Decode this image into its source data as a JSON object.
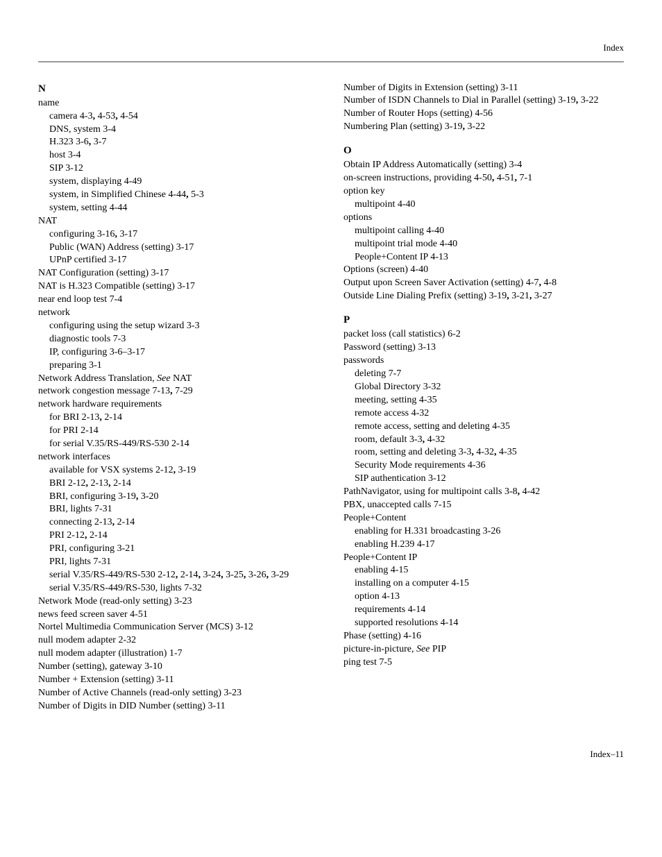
{
  "header": {
    "label": "Index"
  },
  "footer": {
    "label": "Index–11"
  },
  "left": {
    "letter": "N",
    "entries": [
      {
        "lvl": 0,
        "runs": [
          [
            "",
            "name"
          ]
        ]
      },
      {
        "lvl": 1,
        "runs": [
          [
            "",
            "camera 4-3"
          ],
          [
            "b",
            ","
          ],
          [
            "",
            " 4-53"
          ],
          [
            "b",
            ","
          ],
          [
            "",
            " 4-54"
          ]
        ]
      },
      {
        "lvl": 1,
        "runs": [
          [
            "",
            "DNS, system 3-4"
          ]
        ]
      },
      {
        "lvl": 1,
        "runs": [
          [
            "",
            "H.323 3-6"
          ],
          [
            "b",
            ","
          ],
          [
            "",
            " 3-7"
          ]
        ]
      },
      {
        "lvl": 1,
        "runs": [
          [
            "",
            "host 3-4"
          ]
        ]
      },
      {
        "lvl": 1,
        "runs": [
          [
            "",
            "SIP 3-12"
          ]
        ]
      },
      {
        "lvl": 1,
        "runs": [
          [
            "",
            "system, displaying 4-49"
          ]
        ]
      },
      {
        "lvl": 1,
        "runs": [
          [
            "",
            "system, in Simplified Chinese 4-44"
          ],
          [
            "b",
            ","
          ],
          [
            "",
            " 5-3"
          ]
        ]
      },
      {
        "lvl": 1,
        "runs": [
          [
            "",
            "system, setting 4-44"
          ]
        ]
      },
      {
        "lvl": 0,
        "runs": [
          [
            "",
            "NAT"
          ]
        ]
      },
      {
        "lvl": 1,
        "runs": [
          [
            "",
            "configuring 3-16"
          ],
          [
            "b",
            ","
          ],
          [
            "",
            " 3-17"
          ]
        ]
      },
      {
        "lvl": 1,
        "runs": [
          [
            "",
            "Public (WAN) Address (setting) 3-17"
          ]
        ]
      },
      {
        "lvl": 1,
        "runs": [
          [
            "",
            "UPnP certified 3-17"
          ]
        ]
      },
      {
        "lvl": 0,
        "runs": [
          [
            "",
            "NAT Configuration (setting) 3-17"
          ]
        ]
      },
      {
        "lvl": 0,
        "runs": [
          [
            "",
            "NAT is H.323 Compatible (setting) 3-17"
          ]
        ]
      },
      {
        "lvl": 0,
        "runs": [
          [
            "",
            "near end loop test 7-4"
          ]
        ]
      },
      {
        "lvl": 0,
        "runs": [
          [
            "",
            "network"
          ]
        ]
      },
      {
        "lvl": 1,
        "runs": [
          [
            "",
            "configuring using the setup wizard 3-3"
          ]
        ]
      },
      {
        "lvl": 1,
        "runs": [
          [
            "",
            "diagnostic tools 7-3"
          ]
        ]
      },
      {
        "lvl": 1,
        "runs": [
          [
            "",
            "IP, configuring 3-6–3-17"
          ]
        ]
      },
      {
        "lvl": 1,
        "runs": [
          [
            "",
            "preparing 3-1"
          ]
        ]
      },
      {
        "lvl": 0,
        "runs": [
          [
            "",
            "Network Address Translation, "
          ],
          [
            "i",
            "See"
          ],
          [
            "",
            " NAT"
          ]
        ]
      },
      {
        "lvl": 0,
        "runs": [
          [
            "",
            "network congestion message 7-13"
          ],
          [
            "b",
            ","
          ],
          [
            "",
            " 7-29"
          ]
        ]
      },
      {
        "lvl": 0,
        "runs": [
          [
            "",
            "network hardware requirements"
          ]
        ]
      },
      {
        "lvl": 1,
        "runs": [
          [
            "",
            "for BRI 2-13"
          ],
          [
            "b",
            ","
          ],
          [
            "",
            " 2-14"
          ]
        ]
      },
      {
        "lvl": 1,
        "runs": [
          [
            "",
            "for PRI 2-14"
          ]
        ]
      },
      {
        "lvl": 1,
        "runs": [
          [
            "",
            "for serial V.35/RS-449/RS-530 2-14"
          ]
        ]
      },
      {
        "lvl": 0,
        "runs": [
          [
            "",
            "network interfaces"
          ]
        ]
      },
      {
        "lvl": 1,
        "runs": [
          [
            "",
            "available for VSX systems 2-12"
          ],
          [
            "b",
            ","
          ],
          [
            "",
            " 3-19"
          ]
        ]
      },
      {
        "lvl": 1,
        "runs": [
          [
            "",
            "BRI 2-12"
          ],
          [
            "b",
            ","
          ],
          [
            "",
            " 2-13"
          ],
          [
            "b",
            ","
          ],
          [
            "",
            " 2-14"
          ]
        ]
      },
      {
        "lvl": 1,
        "runs": [
          [
            "",
            "BRI, configuring 3-19"
          ],
          [
            "b",
            ","
          ],
          [
            "",
            " 3-20"
          ]
        ]
      },
      {
        "lvl": 1,
        "runs": [
          [
            "",
            "BRI, lights 7-31"
          ]
        ]
      },
      {
        "lvl": 1,
        "runs": [
          [
            "",
            "connecting 2-13"
          ],
          [
            "b",
            ","
          ],
          [
            "",
            " 2-14"
          ]
        ]
      },
      {
        "lvl": 1,
        "runs": [
          [
            "",
            "PRI 2-12"
          ],
          [
            "b",
            ","
          ],
          [
            "",
            " 2-14"
          ]
        ]
      },
      {
        "lvl": 1,
        "runs": [
          [
            "",
            "PRI, configuring 3-21"
          ]
        ]
      },
      {
        "lvl": 1,
        "runs": [
          [
            "",
            "PRI, lights 7-31"
          ]
        ]
      },
      {
        "lvl": 1,
        "runs": [
          [
            "",
            "serial V.35/RS-449/RS-530 2-12"
          ],
          [
            "b",
            ","
          ],
          [
            "",
            " 2-14"
          ],
          [
            "b",
            ","
          ],
          [
            "",
            " 3-24"
          ],
          [
            "b",
            ","
          ],
          [
            "",
            " 3-25"
          ],
          [
            "b",
            ","
          ],
          [
            "",
            " 3-26"
          ],
          [
            "b",
            ","
          ],
          [
            "",
            " 3-29"
          ]
        ]
      },
      {
        "lvl": 1,
        "runs": [
          [
            "",
            "serial V.35/RS-449/RS-530, lights 7-32"
          ]
        ]
      },
      {
        "lvl": 0,
        "runs": [
          [
            "",
            "Network Mode (read-only setting) 3-23"
          ]
        ]
      },
      {
        "lvl": 0,
        "runs": [
          [
            "",
            "news feed screen saver 4-51"
          ]
        ]
      },
      {
        "lvl": 0,
        "runs": [
          [
            "",
            "Nortel Multimedia Communication Server (MCS) 3-12"
          ]
        ]
      },
      {
        "lvl": 0,
        "runs": [
          [
            "",
            "null modem adapter 2-32"
          ]
        ]
      },
      {
        "lvl": 0,
        "runs": [
          [
            "",
            "null modem adapter (illustration) 1-7"
          ]
        ]
      },
      {
        "lvl": 0,
        "runs": [
          [
            "",
            "Number (setting), gateway 3-10"
          ]
        ]
      },
      {
        "lvl": 0,
        "runs": [
          [
            "",
            "Number + Extension (setting) 3-11"
          ]
        ]
      },
      {
        "lvl": 0,
        "runs": [
          [
            "",
            "Number of Active Channels (read-only setting) 3-23"
          ]
        ]
      },
      {
        "lvl": 0,
        "runs": [
          [
            "",
            "Number of Digits in DID Number (setting) 3-11"
          ]
        ]
      }
    ]
  },
  "right": {
    "blocks": [
      {
        "letter": null,
        "entries": [
          {
            "lvl": 0,
            "runs": [
              [
                "",
                "Number of Digits in Extension (setting) 3-11"
              ]
            ]
          },
          {
            "lvl": 0,
            "runs": [
              [
                "",
                "Number of ISDN Channels to Dial in Parallel (setting) 3-19"
              ],
              [
                "b",
                ","
              ],
              [
                "",
                " 3-22"
              ]
            ]
          },
          {
            "lvl": 0,
            "runs": [
              [
                "",
                "Number of Router Hops (setting) 4-56"
              ]
            ]
          },
          {
            "lvl": 0,
            "runs": [
              [
                "",
                "Numbering Plan (setting) 3-19"
              ],
              [
                "b",
                ","
              ],
              [
                "",
                " 3-22"
              ]
            ]
          }
        ]
      },
      {
        "letter": "O",
        "entries": [
          {
            "lvl": 0,
            "runs": [
              [
                "",
                "Obtain IP Address Automatically (setting) 3-4"
              ]
            ]
          },
          {
            "lvl": 0,
            "runs": [
              [
                "",
                "on-screen instructions, providing 4-50"
              ],
              [
                "b",
                ","
              ],
              [
                "",
                " 4-51"
              ],
              [
                "b",
                ","
              ],
              [
                "",
                " 7-1"
              ]
            ]
          },
          {
            "lvl": 0,
            "runs": [
              [
                "",
                "option key"
              ]
            ]
          },
          {
            "lvl": 1,
            "runs": [
              [
                "",
                "multipoint 4-40"
              ]
            ]
          },
          {
            "lvl": 0,
            "runs": [
              [
                "",
                "options"
              ]
            ]
          },
          {
            "lvl": 1,
            "runs": [
              [
                "",
                "multipoint calling 4-40"
              ]
            ]
          },
          {
            "lvl": 1,
            "runs": [
              [
                "",
                "multipoint trial mode 4-40"
              ]
            ]
          },
          {
            "lvl": 1,
            "runs": [
              [
                "",
                "People+Content IP 4-13"
              ]
            ]
          },
          {
            "lvl": 0,
            "runs": [
              [
                "",
                "Options (screen) 4-40"
              ]
            ]
          },
          {
            "lvl": 0,
            "runs": [
              [
                "",
                "Output upon Screen Saver Activation (setting) 4-7"
              ],
              [
                "b",
                ","
              ],
              [
                "",
                " 4-8"
              ]
            ]
          },
          {
            "lvl": 0,
            "runs": [
              [
                "",
                "Outside Line Dialing Prefix (setting) 3-19"
              ],
              [
                "b",
                ","
              ],
              [
                "",
                " 3-21"
              ],
              [
                "b",
                ","
              ],
              [
                "",
                " 3-27"
              ]
            ]
          }
        ]
      },
      {
        "letter": "P",
        "entries": [
          {
            "lvl": 0,
            "runs": [
              [
                "",
                "packet loss (call statistics) 6-2"
              ]
            ]
          },
          {
            "lvl": 0,
            "runs": [
              [
                "",
                "Password (setting) 3-13"
              ]
            ]
          },
          {
            "lvl": 0,
            "runs": [
              [
                "",
                "passwords"
              ]
            ]
          },
          {
            "lvl": 1,
            "runs": [
              [
                "",
                "deleting 7-7"
              ]
            ]
          },
          {
            "lvl": 1,
            "runs": [
              [
                "",
                "Global Directory 3-32"
              ]
            ]
          },
          {
            "lvl": 1,
            "runs": [
              [
                "",
                "meeting, setting 4-35"
              ]
            ]
          },
          {
            "lvl": 1,
            "runs": [
              [
                "",
                "remote access 4-32"
              ]
            ]
          },
          {
            "lvl": 1,
            "runs": [
              [
                "",
                "remote access, setting and deleting 4-35"
              ]
            ]
          },
          {
            "lvl": 1,
            "runs": [
              [
                "",
                "room, default 3-3"
              ],
              [
                "b",
                ","
              ],
              [
                "",
                " 4-32"
              ]
            ]
          },
          {
            "lvl": 1,
            "runs": [
              [
                "",
                "room, setting and deleting 3-3"
              ],
              [
                "b",
                ","
              ],
              [
                "",
                " 4-32"
              ],
              [
                "b",
                ","
              ],
              [
                "",
                " 4-35"
              ]
            ]
          },
          {
            "lvl": 1,
            "runs": [
              [
                "",
                "Security Mode requirements 4-36"
              ]
            ]
          },
          {
            "lvl": 1,
            "runs": [
              [
                "",
                "SIP authentication 3-12"
              ]
            ]
          },
          {
            "lvl": 0,
            "runs": [
              [
                "",
                "PathNavigator, using for multipoint calls 3-8"
              ],
              [
                "b",
                ","
              ],
              [
                "",
                " 4-42"
              ]
            ]
          },
          {
            "lvl": 0,
            "runs": [
              [
                "",
                "PBX, unaccepted calls 7-15"
              ]
            ]
          },
          {
            "lvl": 0,
            "runs": [
              [
                "",
                "People+Content"
              ]
            ]
          },
          {
            "lvl": 1,
            "runs": [
              [
                "",
                "enabling for H.331 broadcasting 3-26"
              ]
            ]
          },
          {
            "lvl": 1,
            "runs": [
              [
                "",
                "enabling H.239 4-17"
              ]
            ]
          },
          {
            "lvl": 0,
            "runs": [
              [
                "",
                "People+Content IP"
              ]
            ]
          },
          {
            "lvl": 1,
            "runs": [
              [
                "",
                "enabling 4-15"
              ]
            ]
          },
          {
            "lvl": 1,
            "runs": [
              [
                "",
                "installing on a computer 4-15"
              ]
            ]
          },
          {
            "lvl": 1,
            "runs": [
              [
                "",
                "option 4-13"
              ]
            ]
          },
          {
            "lvl": 1,
            "runs": [
              [
                "",
                "requirements 4-14"
              ]
            ]
          },
          {
            "lvl": 1,
            "runs": [
              [
                "",
                "supported resolutions 4-14"
              ]
            ]
          },
          {
            "lvl": 0,
            "runs": [
              [
                "",
                "Phase (setting) 4-16"
              ]
            ]
          },
          {
            "lvl": 0,
            "runs": [
              [
                "",
                "picture-in-picture, "
              ],
              [
                "i",
                "See"
              ],
              [
                "",
                " PIP"
              ]
            ]
          },
          {
            "lvl": 0,
            "runs": [
              [
                "",
                "ping test 7-5"
              ]
            ]
          }
        ]
      }
    ]
  }
}
